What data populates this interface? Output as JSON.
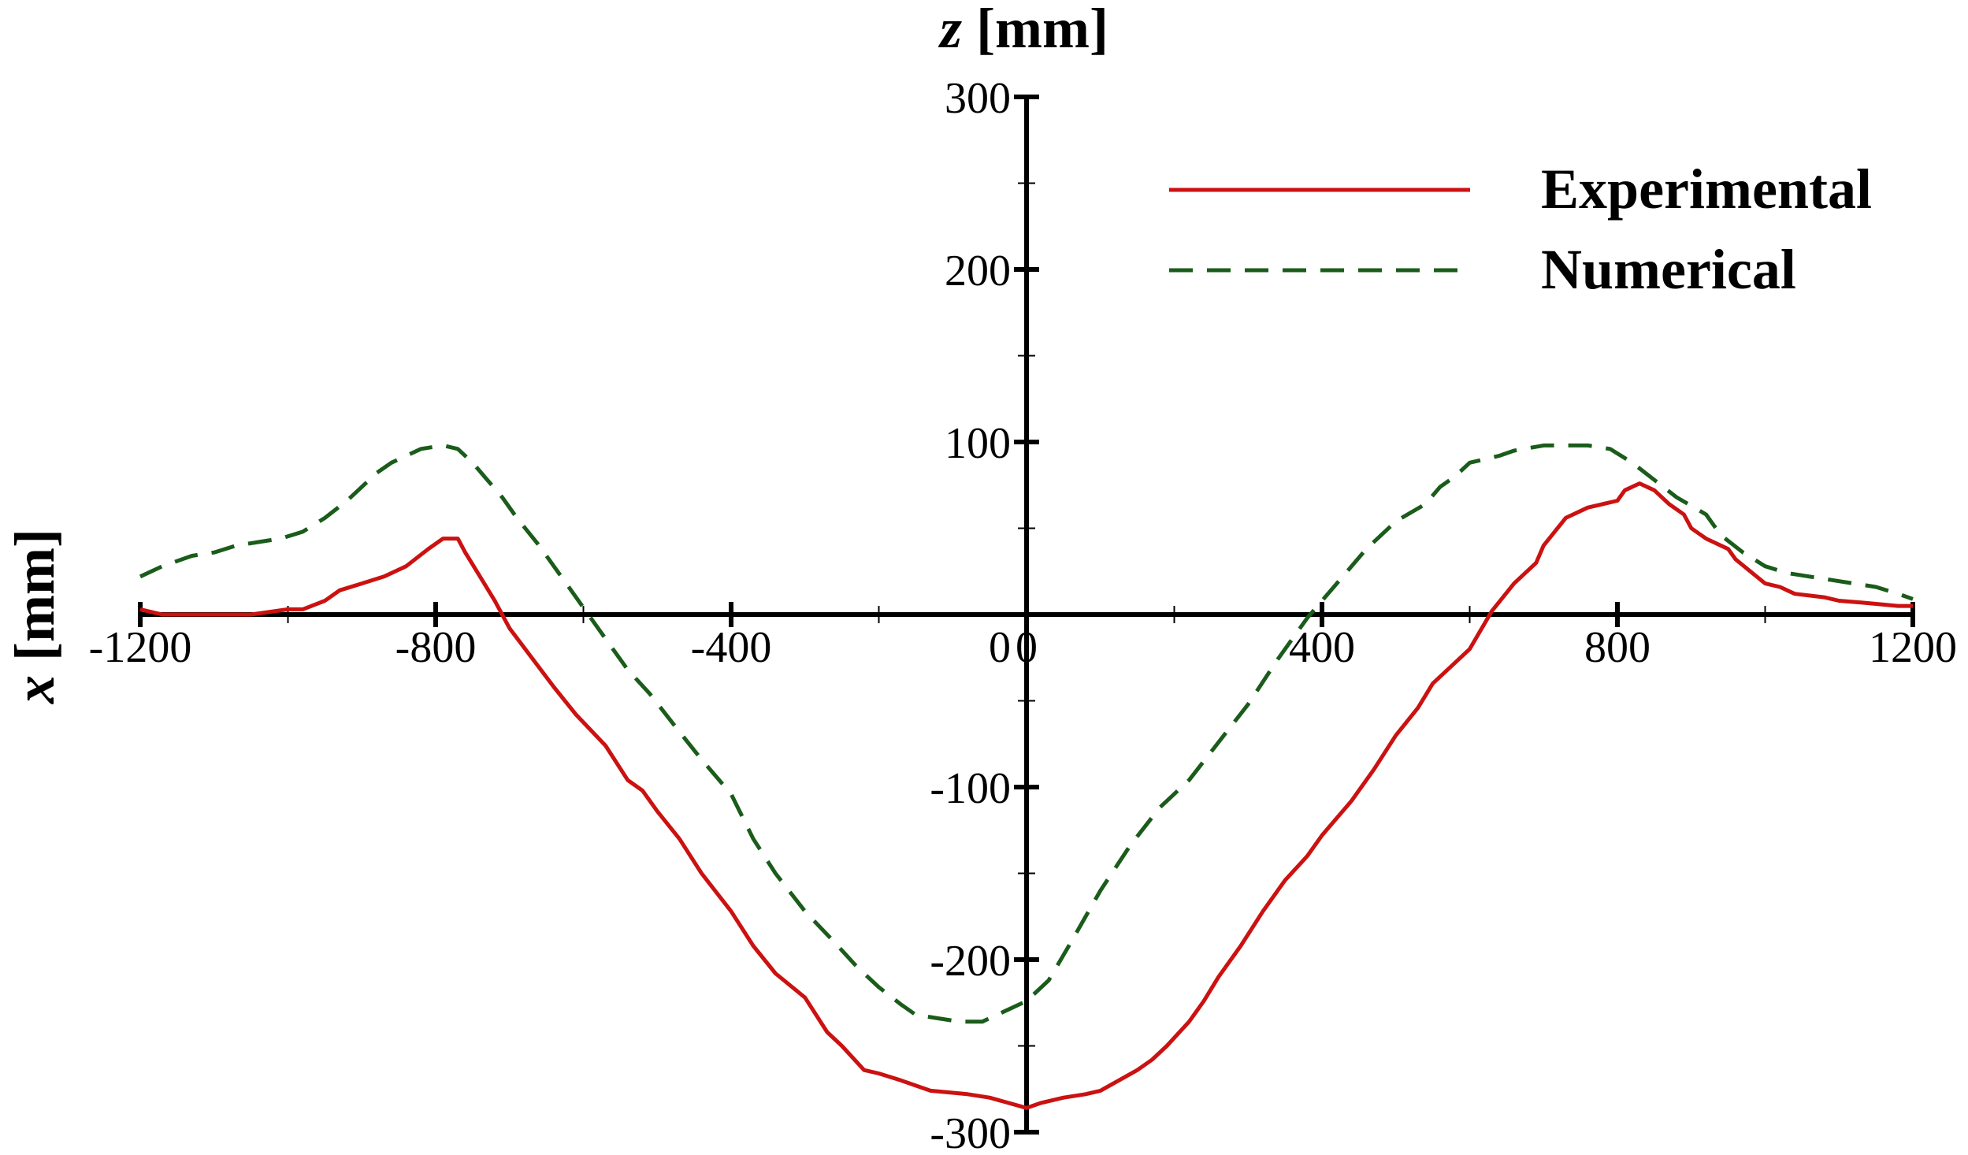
{
  "chart_data": {
    "type": "line",
    "xlim": [
      -1200,
      1200
    ],
    "ylim": [
      -300,
      300
    ],
    "x_ticks": [
      -1200,
      -800,
      -400,
      0,
      400,
      800,
      1200
    ],
    "y_ticks": [
      300,
      200,
      100,
      0,
      -100,
      -200,
      -300
    ],
    "x_tick_labels": [
      "-1200",
      "-800",
      "-400",
      "0",
      "400",
      "800",
      "1200"
    ],
    "y_tick_labels": [
      "300",
      "200",
      "100",
      "0",
      "-100",
      "-200",
      "-300"
    ],
    "x_minor_step": 200,
    "y_minor_step": 50,
    "xlabel_var": "z",
    "xlabel_unit": "[mm]",
    "ylabel_var": "x",
    "ylabel_unit": "[mm]",
    "grid": false,
    "legend_position": "top-right",
    "series": [
      {
        "name": "Experimental",
        "color": "#cc1111",
        "style": "solid",
        "x": [
          -1200,
          -1170,
          -1150,
          -1100,
          -1050,
          -1000,
          -980,
          -950,
          -930,
          -900,
          -870,
          -840,
          -810,
          -790,
          -770,
          -760,
          -740,
          -720,
          -700,
          -670,
          -640,
          -610,
          -570,
          -540,
          -520,
          -500,
          -470,
          -440,
          -400,
          -370,
          -340,
          -300,
          -270,
          -250,
          -220,
          -200,
          -170,
          -130,
          -80,
          -50,
          0,
          20,
          50,
          80,
          100,
          150,
          170,
          190,
          220,
          240,
          260,
          290,
          320,
          350,
          380,
          400,
          440,
          470,
          500,
          530,
          550,
          600,
          630,
          660,
          690,
          700,
          730,
          760,
          800,
          810,
          830,
          850,
          870,
          890,
          900,
          920,
          950,
          960,
          980,
          1000,
          1020,
          1040,
          1080,
          1100,
          1130,
          1180,
          1200
        ],
        "y": [
          3,
          0,
          0,
          0,
          0,
          3,
          3,
          8,
          14,
          18,
          22,
          28,
          38,
          44,
          44,
          36,
          22,
          8,
          -8,
          -25,
          -42,
          -58,
          -76,
          -96,
          -102,
          -114,
          -130,
          -150,
          -172,
          -192,
          -208,
          -222,
          -242,
          -250,
          -264,
          -266,
          -270,
          -276,
          -278,
          -280,
          -286,
          -283,
          -280,
          -278,
          -276,
          -264,
          -258,
          -250,
          -236,
          -224,
          -210,
          -192,
          -172,
          -154,
          -140,
          -128,
          -108,
          -90,
          -70,
          -54,
          -40,
          -20,
          2,
          18,
          30,
          40,
          56,
          62,
          66,
          72,
          76,
          72,
          64,
          58,
          50,
          44,
          38,
          32,
          25,
          18,
          16,
          12,
          10,
          8,
          7,
          5,
          5
        ]
      },
      {
        "name": "Numerical",
        "color": "#1a5c1a",
        "style": "dashed",
        "x": [
          -1200,
          -1170,
          -1130,
          -1100,
          -1070,
          -1040,
          -1010,
          -980,
          -950,
          -920,
          -900,
          -880,
          -860,
          -820,
          -790,
          -770,
          -750,
          -730,
          -710,
          -690,
          -660,
          -630,
          -600,
          -570,
          -540,
          -510,
          -470,
          -440,
          -400,
          -370,
          -340,
          -300,
          -260,
          -230,
          -200,
          -170,
          -150,
          -120,
          -90,
          -60,
          -30,
          0,
          30,
          60,
          100,
          140,
          180,
          220,
          260,
          300,
          340,
          380,
          420,
          460,
          500,
          540,
          560,
          580,
          600,
          640,
          660,
          700,
          740,
          760,
          790,
          820,
          850,
          880,
          920,
          940,
          970,
          1000,
          1030,
          1060,
          1090,
          1120,
          1150,
          1180,
          1200
        ],
        "y": [
          22,
          28,
          34,
          36,
          40,
          42,
          44,
          48,
          56,
          66,
          74,
          82,
          88,
          96,
          98,
          96,
          88,
          78,
          68,
          56,
          40,
          22,
          4,
          -14,
          -32,
          -46,
          -68,
          -84,
          -104,
          -130,
          -150,
          -172,
          -190,
          -204,
          -216,
          -226,
          -232,
          -234,
          -236,
          -236,
          -230,
          -224,
          -212,
          -190,
          -160,
          -134,
          -112,
          -96,
          -74,
          -52,
          -26,
          -2,
          18,
          38,
          54,
          64,
          74,
          80,
          88,
          92,
          95,
          98,
          98,
          98,
          96,
          88,
          78,
          68,
          58,
          46,
          36,
          28,
          24,
          22,
          20,
          18,
          16,
          12,
          9
        ]
      }
    ]
  }
}
